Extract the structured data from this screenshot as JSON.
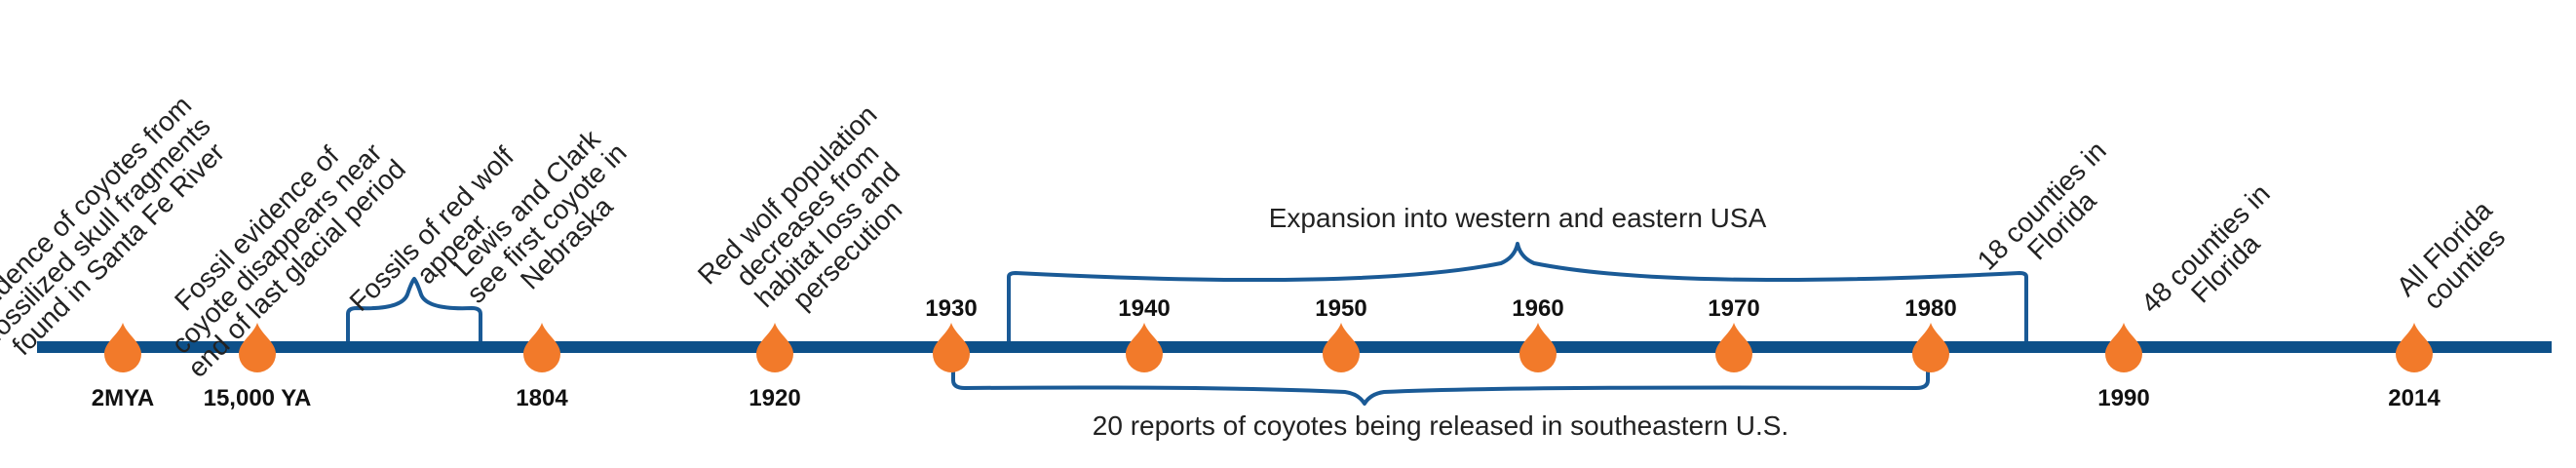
{
  "colors": {
    "axis": "#0d5089",
    "marker": "#f27a2a",
    "brace": "#1a5a96",
    "text": "#222222"
  },
  "timeline": {
    "bottom_labels": [
      "2MYA",
      "15,000 YA",
      "1804",
      "1920",
      "1990",
      "2014"
    ],
    "top_labels": [
      "1930",
      "1940",
      "1950",
      "1960",
      "1970",
      "1980"
    ],
    "events": [
      [
        "Evidence of coyotes from",
        "fossilized skull fragments",
        "found in Santa Fe River"
      ],
      [
        "Fossil evidence of",
        "coyote disappears near",
        "end of last glacial period"
      ],
      [
        "Fossils of red wolf",
        "appear"
      ],
      [
        "Lewis and Clark",
        "see first coyote in",
        "Nebraska"
      ],
      [
        "Red wolf population",
        "decreases from",
        "habitat loss and",
        "persecution"
      ],
      [
        "18 counties in",
        "Florida"
      ],
      [
        "48 counties in",
        "Florida"
      ],
      [
        "All Florida",
        "counties"
      ]
    ],
    "spans": {
      "expansion": "Expansion into western and eastern USA",
      "reports": "20 reports of coyotes being released in southeastern U.S."
    }
  }
}
